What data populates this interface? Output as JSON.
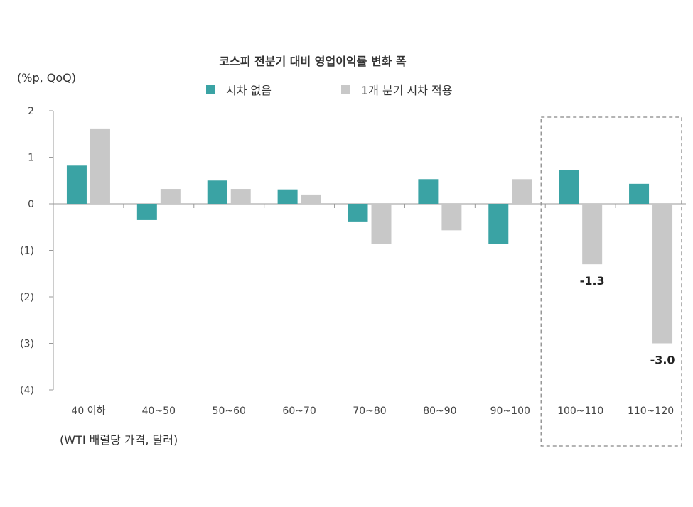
{
  "chart_data": {
    "type": "bar",
    "title": "코스피 전분기 대비 영업이익률 변화 폭",
    "ylabel": "(%p, QoQ)",
    "xlabel": "(WTI 배럴당 가격, 달러)",
    "ylim": [
      -4,
      2
    ],
    "yticks": [
      {
        "value": 2,
        "label": "2"
      },
      {
        "value": 1,
        "label": "1"
      },
      {
        "value": 0,
        "label": "0"
      },
      {
        "value": -1,
        "label": "(1)"
      },
      {
        "value": -2,
        "label": "(2)"
      },
      {
        "value": -3,
        "label": "(3)"
      },
      {
        "value": -4,
        "label": "(4)"
      }
    ],
    "categories": [
      "40 이하",
      "40~50",
      "50~60",
      "60~70",
      "70~80",
      "80~90",
      "90~100",
      "100~110",
      "110~120"
    ],
    "series": [
      {
        "name": "시차 없음",
        "color": "#3aa3a4",
        "values": [
          0.82,
          -0.35,
          0.5,
          0.31,
          -0.38,
          0.53,
          -0.87,
          0.73,
          0.43
        ]
      },
      {
        "name": "1개 분기 시차 적용",
        "color": "#c8c8c8",
        "values": [
          1.62,
          0.32,
          0.32,
          0.2,
          -0.87,
          -0.57,
          0.53,
          -1.3,
          -3.0
        ]
      }
    ],
    "data_labels": [
      {
        "series": 1,
        "index": 7,
        "text": "-1.3"
      },
      {
        "series": 1,
        "index": 8,
        "text": "-3.0"
      }
    ],
    "highlight": {
      "from_index": 7,
      "to_index": 8,
      "style": "dashed-box"
    },
    "grid": false,
    "legend_position": "top"
  }
}
